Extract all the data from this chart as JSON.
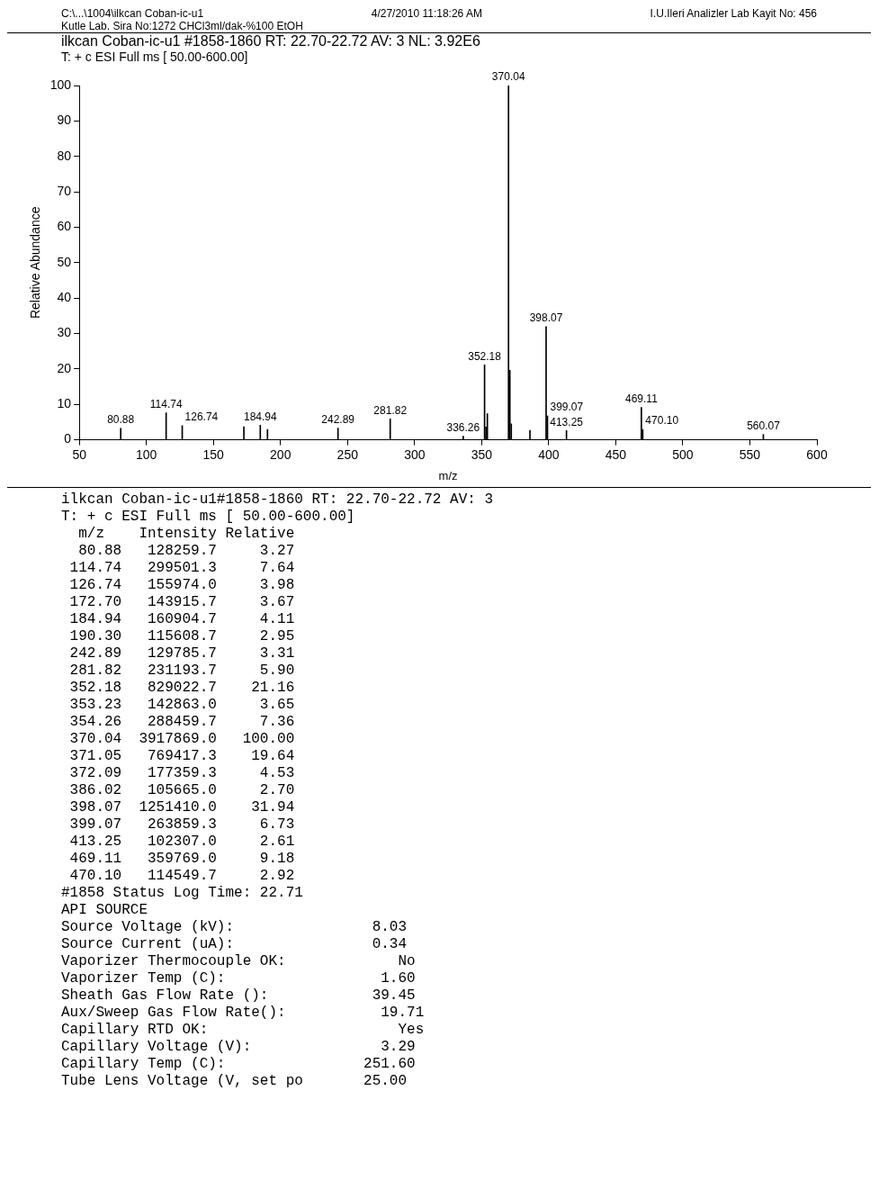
{
  "chart_data": {
    "type": "bar",
    "title": "ilkcan Coban-ic-u1 #1858-1860  RT: 22.70-22.72  AV: 3  NL: 3.92E6",
    "subtitle": "T: + c ESI Full ms [ 50.00-600.00]",
    "xlabel": "m/z",
    "ylabel": "Relative Abundance",
    "x": [
      80.88,
      114.74,
      126.74,
      172.7,
      184.94,
      190.3,
      242.89,
      281.82,
      336.26,
      352.18,
      353.23,
      354.26,
      370.04,
      371.05,
      372.09,
      386.02,
      398.07,
      399.07,
      413.25,
      469.11,
      470.1,
      560.07
    ],
    "values": [
      3.27,
      7.64,
      3.98,
      3.67,
      4.11,
      2.95,
      3.31,
      5.9,
      1.0,
      21.16,
      3.65,
      7.36,
      100.0,
      19.64,
      4.53,
      2.7,
      31.94,
      6.73,
      2.61,
      9.18,
      2.92,
      1.5
    ],
    "annotations": [
      {
        "text": "80.88",
        "x": 80.88,
        "y": 3.27
      },
      {
        "text": "114.74",
        "x": 114.74,
        "y": 7.64
      },
      {
        "text": "126.74",
        "x": 126.74,
        "y": 3.98
      },
      {
        "text": "184.94",
        "x": 184.94,
        "y": 4.11
      },
      {
        "text": "242.89",
        "x": 242.89,
        "y": 3.31
      },
      {
        "text": "281.82",
        "x": 281.82,
        "y": 5.9
      },
      {
        "text": "336.26",
        "x": 336.26,
        "y": 1.0
      },
      {
        "text": "352.18",
        "x": 352.18,
        "y": 21.16
      },
      {
        "text": "370.04",
        "x": 370.04,
        "y": 100.0
      },
      {
        "text": "398.07",
        "x": 398.07,
        "y": 31.94
      },
      {
        "text": "399.07",
        "x": 399.07,
        "y": 6.73
      },
      {
        "text": "413.25",
        "x": 413.25,
        "y": 2.61
      },
      {
        "text": "469.11",
        "x": 469.11,
        "y": 9.18
      },
      {
        "text": "470.10",
        "x": 470.1,
        "y": 2.92
      },
      {
        "text": "560.07",
        "x": 560.07,
        "y": 1.5
      },
      "C:\\...\\1004\\ilkcan Coban-ic-u1",
      "4/27/2010 11:18:26 AM",
      "I.U.Ileri Analizler Lab Kayit No: 456",
      "Kutle Lab. Sira No:1272   CHCl3ml/dak-%100 EtOH",
      "ilkcan Coban-ic-u1#1858-1860 RT: 22.70-22.72 AV: 3",
      "T: + c ESI Full ms [ 50.00-600.00]",
      "  m/z    Intensity Relative",
      "  80.88   128259.7     3.27",
      " 114.74   299501.3     7.64",
      " 126.74   155974.0     3.98",
      " 172.70   143915.7     3.67",
      " 184.94   160904.7     4.11",
      " 190.30   115608.7     2.95",
      " 242.89   129785.7     3.31",
      " 281.82   231193.7     5.90",
      " 352.18   829022.7    21.16",
      " 353.23   142863.0     3.65",
      " 354.26   288459.7     7.36",
      " 370.04  3917869.0   100.00",
      " 371.05   769417.3    19.64",
      " 372.09   177359.3     4.53",
      " 386.02   105665.0     2.70",
      " 398.07  1251410.0    31.94",
      " 399.07   263859.3     6.73",
      " 413.25   102307.0     2.61",
      " 469.11   359769.0     9.18",
      " 470.10   114549.7     2.92",
      "#1858 Status Log Time: 22.71",
      "API SOURCE",
      "Source Voltage (kV):                8.03",
      "Source Current (uA):                0.34",
      "Vaporizer Thermocouple OK:             No",
      "Vaporizer Temp (C):                  1.60",
      "Sheath Gas Flow Rate ():            39.45",
      "Aux/Sweep Gas Flow Rate():           19.71",
      "Capillary RTD OK:                      Yes",
      "Capillary Voltage (V):               3.29",
      "Capillary Temp (C):                251.60",
      "Tube Lens Voltage (V, set po       25.00"
    ],
    "color": "#000000",
    "xlim": [
      50,
      600
    ],
    "xticks": [
      50,
      100,
      150,
      200,
      250,
      300,
      350,
      400,
      450,
      500,
      550,
      600
    ],
    "ylim": [
      0,
      100
    ],
    "yticks": [
      0,
      10,
      20,
      30,
      40,
      50,
      60,
      70,
      80,
      90,
      100
    ],
    "grid": false,
    "legend": false
  }
}
